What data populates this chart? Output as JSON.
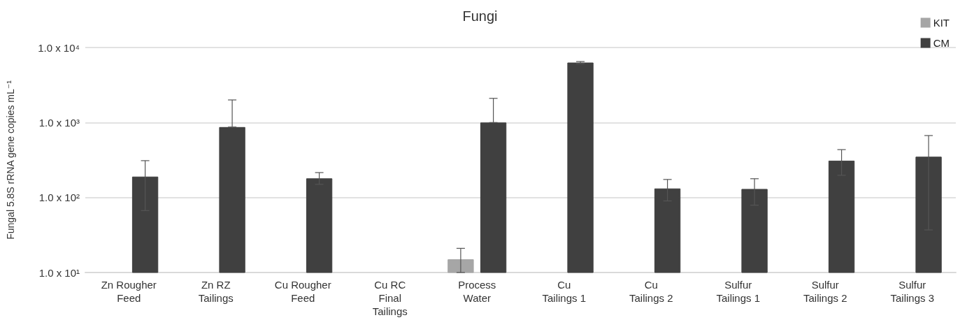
{
  "chart_data": {
    "type": "bar",
    "title": "Fungi",
    "ylabel": "Fungal 5.8S rRNA gene copies mL⁻¹",
    "categories": [
      "Zn Rougher\nFeed",
      "Zn RZ\nTailings",
      "Cu Rougher\nFeed",
      "Cu RC\nFinal\nTailings",
      "Process\nWater",
      "Cu\nTailings 1",
      "Cu\nTailings 2",
      "Sulfur\nTailings 1",
      "Sulfur\nTailings 2",
      "Sulfur\nTailings 3"
    ],
    "series": [
      {
        "name": "KIT",
        "color": "#a6a6a6",
        "values": [
          10,
          10,
          10,
          10,
          15,
          null,
          null,
          null,
          null,
          10
        ],
        "errors": [
          null,
          null,
          null,
          null,
          [
            10,
            21
          ],
          null,
          null,
          null,
          null,
          null
        ]
      },
      {
        "name": "CM",
        "color": "#404040",
        "values": [
          190,
          870,
          180,
          null,
          1000,
          6300,
          132,
          130,
          310,
          350
        ],
        "errors": [
          [
            67,
            310
          ],
          [
            870,
            2000
          ],
          [
            150,
            215
          ],
          null,
          [
            1000,
            2100
          ],
          [
            6100,
            6500
          ],
          [
            90,
            174
          ],
          [
            79,
            178
          ],
          [
            198,
            435
          ],
          [
            37,
            670
          ]
        ]
      }
    ],
    "log": "y",
    "ylim": [
      10,
      10000
    ],
    "yticks": [
      {
        "value": 10,
        "label": "1.0 x 10¹"
      },
      {
        "value": 100,
        "label": "1.0 x 10²"
      },
      {
        "value": 1000,
        "label": "1.0 x 10³"
      },
      {
        "value": 10000,
        "label": "1.0 x 10⁴"
      }
    ],
    "grid": "y",
    "legend": "top right"
  }
}
